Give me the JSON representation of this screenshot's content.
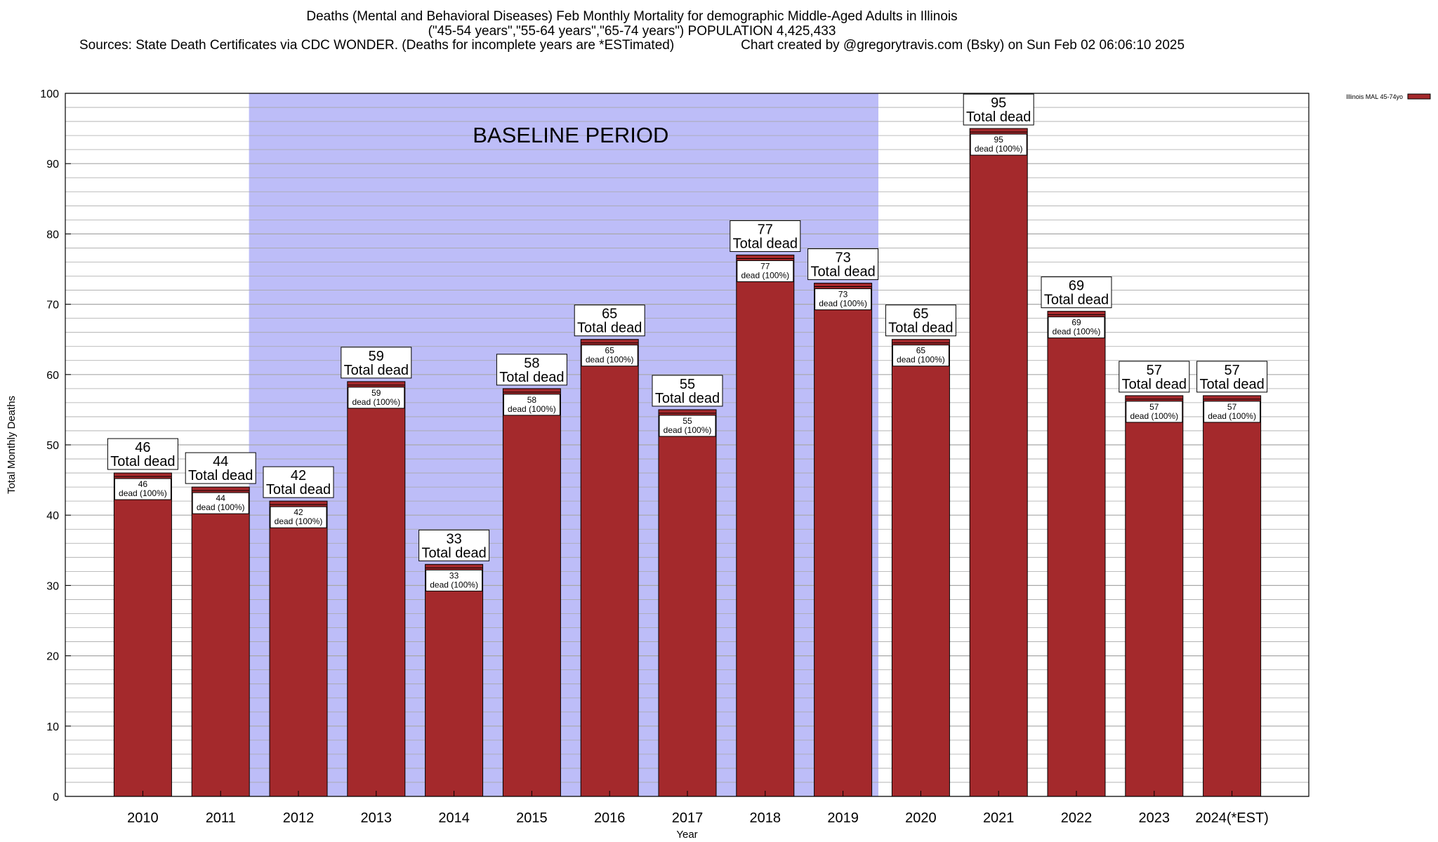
{
  "header": {
    "line1": "Deaths (Mental and Behavioral Diseases) Feb Monthly Mortality for demographic Middle-Aged Adults in Illinois",
    "line2": "(\"45-54 years\",\"55-64 years\",\"65-74 years\") POPULATION 4,425,433",
    "line3": "Sources: State Death Certificates via CDC WONDER. (Deaths for incomplete years are *ESTimated)                  Chart created by @gregorytravis.com (Bsky) on Sun Feb 02 06:06:10 2025"
  },
  "colors": {
    "bar": "#a4292c",
    "baseline_band": "#bdbdf8",
    "grid": "#a8a8a8"
  },
  "chart_data": {
    "type": "bar",
    "xlabel": "Year",
    "ylabel": "Total Monthly Deaths",
    "ylim": [
      0,
      100
    ],
    "ytick_step": 10,
    "grid": true,
    "legend": {
      "position": "top-right",
      "entry": "Illinois MAL 45-74yo"
    },
    "annotation": {
      "text": "BASELINE PERIOD",
      "from_category": "2012",
      "to_category": "2019"
    },
    "total_label_suffix": "Total dead",
    "inner_label_suffix": "dead (100%)",
    "categories": [
      "2010",
      "2011",
      "2012",
      "2013",
      "2014",
      "2015",
      "2016",
      "2017",
      "2018",
      "2019",
      "2020",
      "2021",
      "2022",
      "2023",
      "2024(*EST)"
    ],
    "series": [
      {
        "name": "Illinois MAL 45-74yo",
        "values": [
          46,
          44,
          42,
          59,
          33,
          58,
          65,
          55,
          77,
          73,
          65,
          95,
          69,
          57,
          57
        ]
      }
    ]
  }
}
